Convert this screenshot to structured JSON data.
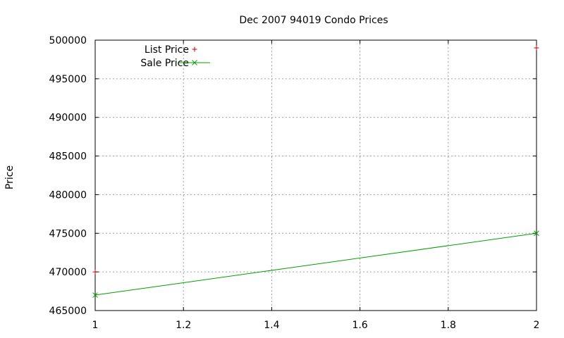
{
  "chart_data": {
    "type": "line",
    "title": "Dec 2007 94019 Condo Prices",
    "xlabel": "",
    "ylabel": "Price",
    "xlim": [
      1,
      2
    ],
    "ylim": [
      465000,
      500000
    ],
    "x_ticks": [
      "1",
      "1.2",
      "1.4",
      "1.6",
      "1.8",
      "2"
    ],
    "y_ticks": [
      "465000",
      "470000",
      "475000",
      "480000",
      "485000",
      "490000",
      "495000",
      "500000"
    ],
    "grid": true,
    "legend_position": "top-left",
    "series": [
      {
        "name": "List Price",
        "style": "points",
        "marker": "plus",
        "color": "#cc0000",
        "points": [
          {
            "x": 1,
            "y": 470000
          },
          {
            "x": 2,
            "y": 499000
          }
        ]
      },
      {
        "name": "Sale Price",
        "style": "linespoints",
        "marker": "cross",
        "color": "#00a000",
        "points": [
          {
            "x": 1,
            "y": 467000
          },
          {
            "x": 2,
            "y": 475000
          }
        ]
      }
    ]
  }
}
